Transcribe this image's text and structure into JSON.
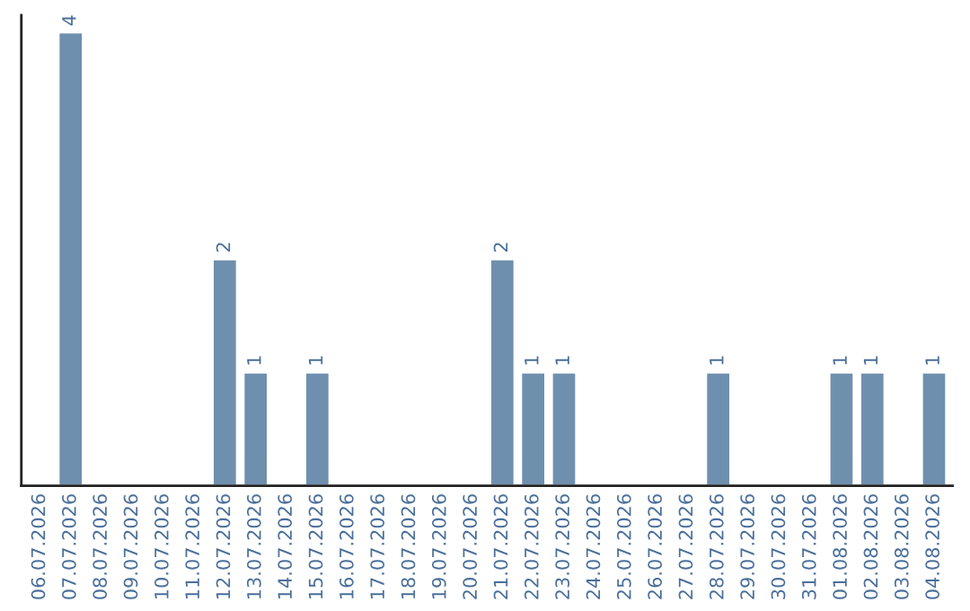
{
  "chart_data": {
    "type": "bar",
    "categories": [
      "06.07.2026",
      "07.07.2026",
      "08.07.2026",
      "09.07.2026",
      "10.07.2026",
      "11.07.2026",
      "12.07.2026",
      "13.07.2026",
      "14.07.2026",
      "15.07.2026",
      "16.07.2026",
      "17.07.2026",
      "18.07.2026",
      "19.07.2026",
      "20.07.2026",
      "21.07.2026",
      "22.07.2026",
      "23.07.2026",
      "24.07.2026",
      "25.07.2026",
      "26.07.2026",
      "27.07.2026",
      "28.07.2026",
      "29.07.2026",
      "30.07.2026",
      "31.07.2026",
      "01.08.2026",
      "02.08.2026",
      "03.08.2026",
      "04.08.2026"
    ],
    "values": [
      null,
      4,
      null,
      null,
      null,
      null,
      2,
      1,
      null,
      1,
      null,
      null,
      null,
      null,
      null,
      2,
      1,
      1,
      null,
      null,
      null,
      null,
      1,
      null,
      null,
      null,
      1,
      1,
      null,
      1
    ],
    "color": "#6f8fae",
    "ylim": [
      0,
      4.15
    ],
    "tick_labels": "x",
    "grid": false,
    "data_labels": true
  }
}
